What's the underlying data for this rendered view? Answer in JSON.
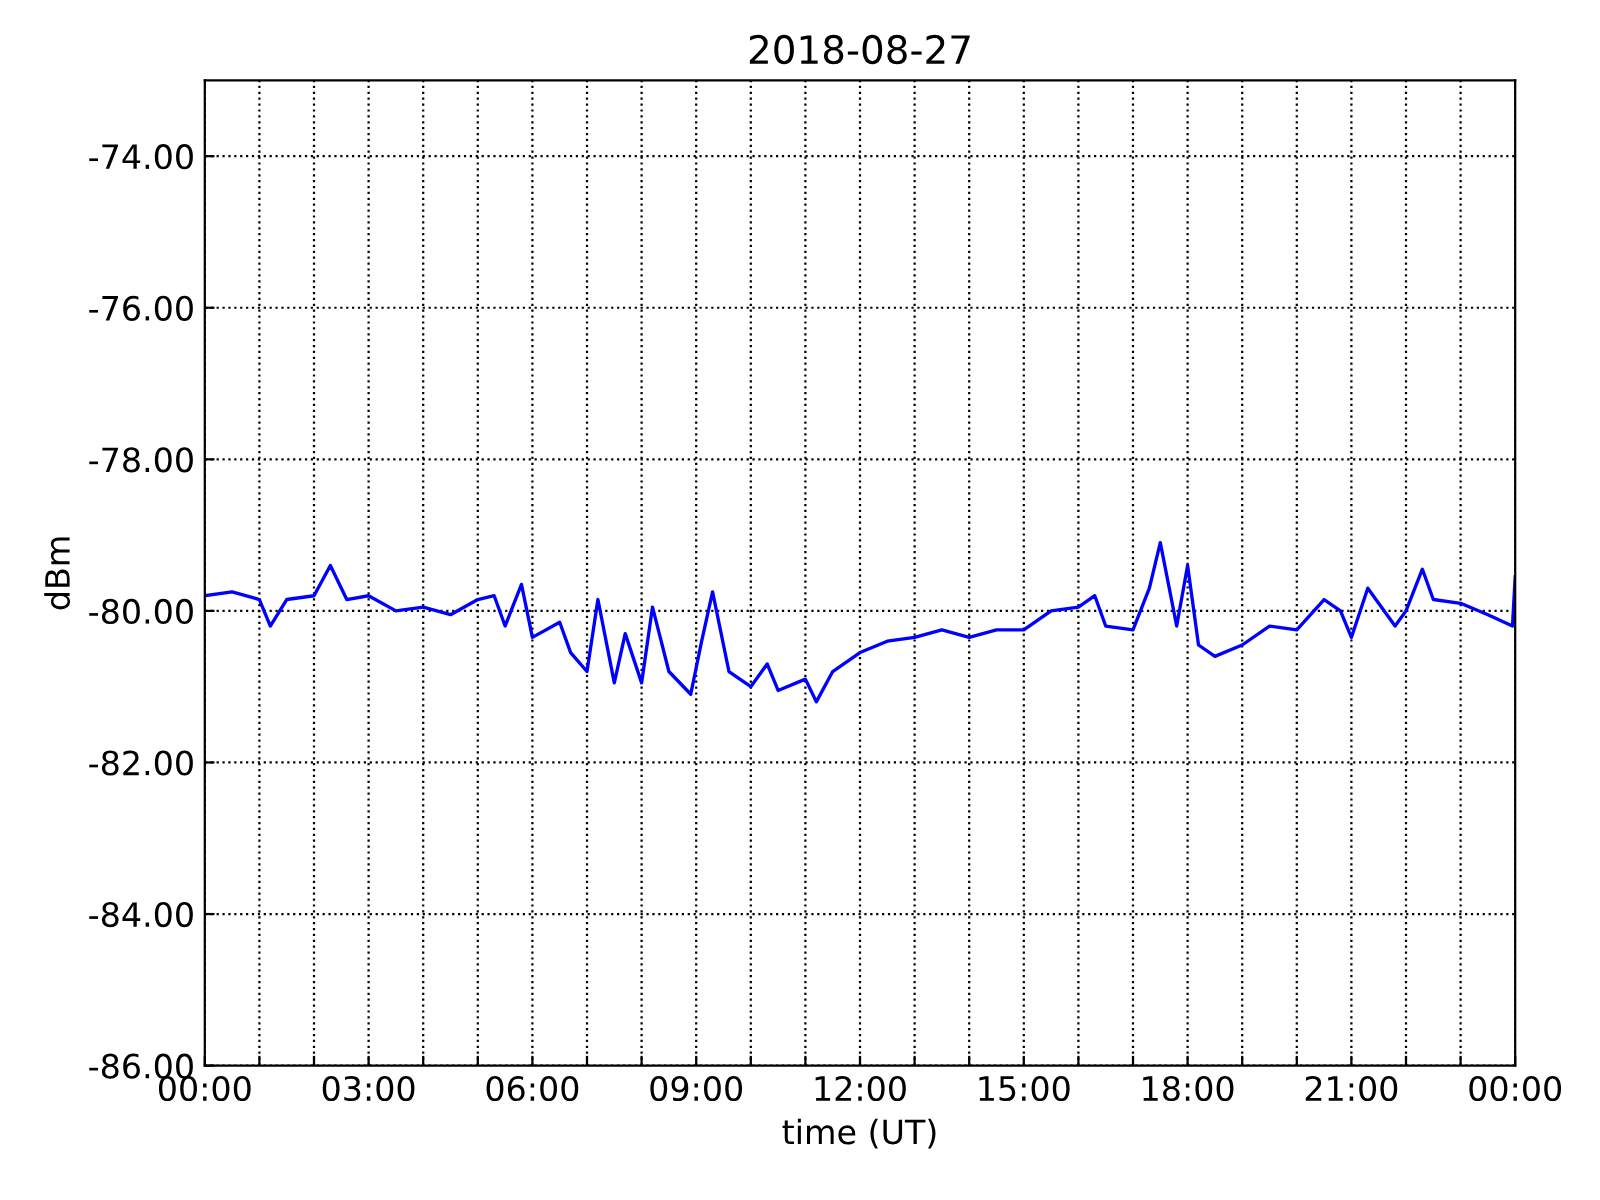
{
  "chart_data": {
    "type": "line",
    "title": "2018-08-27",
    "xlabel": "time (UT)",
    "ylabel": "dBm",
    "x": [
      0,
      0.5,
      1.0,
      1.2,
      1.5,
      2.0,
      2.3,
      2.6,
      3.0,
      3.5,
      4.0,
      4.5,
      5.0,
      5.3,
      5.5,
      5.8,
      6.0,
      6.5,
      6.7,
      7.0,
      7.2,
      7.5,
      7.7,
      8.0,
      8.2,
      8.5,
      8.9,
      9.1,
      9.3,
      9.6,
      10.0,
      10.3,
      10.5,
      11.0,
      11.2,
      11.5,
      12.0,
      12.5,
      13.0,
      13.5,
      14.0,
      14.5,
      15.0,
      15.5,
      16.0,
      16.3,
      16.5,
      17.0,
      17.3,
      17.5,
      17.8,
      18.0,
      18.2,
      18.5,
      19.0,
      19.5,
      20.0,
      20.5,
      20.8,
      21.0,
      21.3,
      21.8,
      22.0,
      22.3,
      22.5,
      23.0,
      23.5,
      23.95,
      24.0
    ],
    "series": [
      {
        "color": "#0000ff",
        "values": [
          -79.8,
          -79.75,
          -79.85,
          -80.2,
          -79.85,
          -79.8,
          -79.4,
          -79.85,
          -79.8,
          -80.0,
          -79.95,
          -80.05,
          -79.85,
          -79.8,
          -80.2,
          -79.65,
          -80.35,
          -80.15,
          -80.55,
          -80.8,
          -79.85,
          -80.95,
          -80.3,
          -80.95,
          -79.95,
          -80.8,
          -81.1,
          -80.4,
          -79.75,
          -80.8,
          -81.0,
          -80.7,
          -81.05,
          -80.9,
          -81.2,
          -80.8,
          -80.55,
          -80.4,
          -80.35,
          -80.25,
          -80.35,
          -80.25,
          -80.25,
          -80.0,
          -79.95,
          -79.8,
          -80.2,
          -80.25,
          -79.7,
          -79.1,
          -80.2,
          -79.4,
          -80.45,
          -80.6,
          -80.45,
          -80.2,
          -80.25,
          -79.85,
          -80.0,
          -80.35,
          -79.7,
          -80.2,
          -80.0,
          -79.45,
          -79.85,
          -79.9,
          -80.05,
          -80.2,
          -79.55
        ]
      }
    ],
    "xlim": [
      0,
      24
    ],
    "xticks": [
      {
        "value": 0,
        "label": "00:00"
      },
      {
        "value": 1,
        "label": null
      },
      {
        "value": 2,
        "label": null
      },
      {
        "value": 3,
        "label": "03:00"
      },
      {
        "value": 4,
        "label": null
      },
      {
        "value": 5,
        "label": null
      },
      {
        "value": 6,
        "label": "06:00"
      },
      {
        "value": 7,
        "label": null
      },
      {
        "value": 8,
        "label": null
      },
      {
        "value": 9,
        "label": "09:00"
      },
      {
        "value": 10,
        "label": null
      },
      {
        "value": 11,
        "label": null
      },
      {
        "value": 12,
        "label": "12:00"
      },
      {
        "value": 13,
        "label": null
      },
      {
        "value": 14,
        "label": null
      },
      {
        "value": 15,
        "label": "15:00"
      },
      {
        "value": 16,
        "label": null
      },
      {
        "value": 17,
        "label": null
      },
      {
        "value": 18,
        "label": "18:00"
      },
      {
        "value": 19,
        "label": null
      },
      {
        "value": 20,
        "label": null
      },
      {
        "value": 21,
        "label": "21:00"
      },
      {
        "value": 22,
        "label": null
      },
      {
        "value": 23,
        "label": null
      },
      {
        "value": 24,
        "label": "00:00"
      }
    ],
    "ylim": [
      -86,
      -73
    ],
    "yticks": [
      {
        "value": -86,
        "label": "-86.00"
      },
      {
        "value": -84,
        "label": "-84.00"
      },
      {
        "value": -82,
        "label": "-82.00"
      },
      {
        "value": -80,
        "label": "-80.00"
      },
      {
        "value": -78,
        "label": "-78.00"
      },
      {
        "value": -76,
        "label": "-76.00"
      },
      {
        "value": -74,
        "label": "-74.00"
      }
    ],
    "grid": true,
    "marker": "none",
    "line_style": "solid"
  }
}
